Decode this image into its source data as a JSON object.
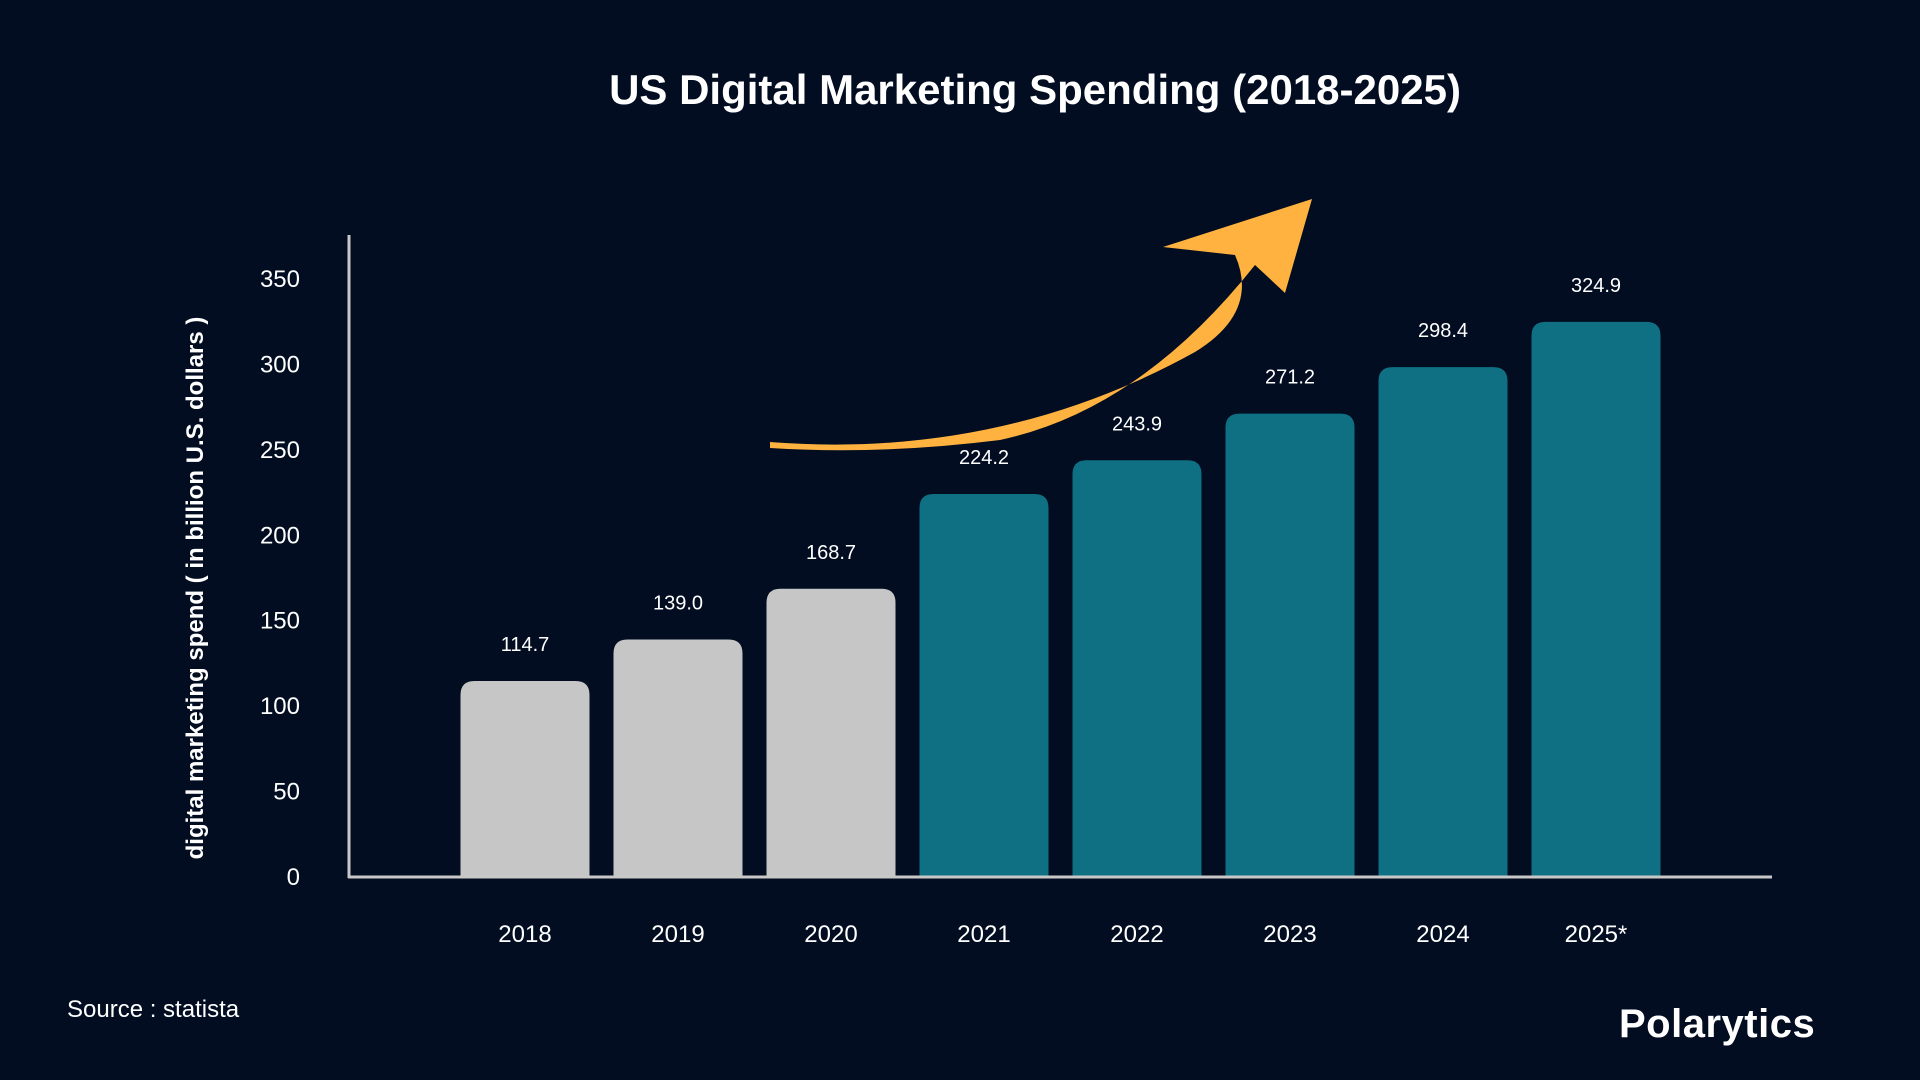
{
  "chart_data": {
    "type": "bar",
    "title": "US Digital Marketing Spending (2018-2025)",
    "xlabel": "",
    "ylabel": "digital marketing spend ( in billion U.S. dollars )",
    "categories": [
      "2018",
      "2019",
      "2020",
      "2021",
      "2022",
      "2023",
      "2024",
      "2025*"
    ],
    "values": [
      114.7,
      139.0,
      168.7,
      224.2,
      243.9,
      271.2,
      298.4,
      324.9
    ],
    "value_labels": [
      "114.7",
      "139.0",
      "168.7",
      "224.2",
      "243.9",
      "271.2",
      "298.4",
      "324.9"
    ],
    "ylim": [
      0,
      350
    ],
    "yticks": [
      0,
      50,
      100,
      150,
      200,
      250,
      300,
      350
    ],
    "grid": false,
    "bar_colors": [
      "#c6c6c6",
      "#c6c6c6",
      "#c6c6c6",
      "#0f7083",
      "#0f7083",
      "#0f7083",
      "#0f7083",
      "#0f7083"
    ],
    "annotation": "upward-trend-arrow",
    "annotation_color": "#ffb240"
  },
  "source": "Source : statista",
  "brand": "Polarytics",
  "colors": {
    "background": "#020d21",
    "axis": "#c8c8c8",
    "text": "#ffffff"
  }
}
